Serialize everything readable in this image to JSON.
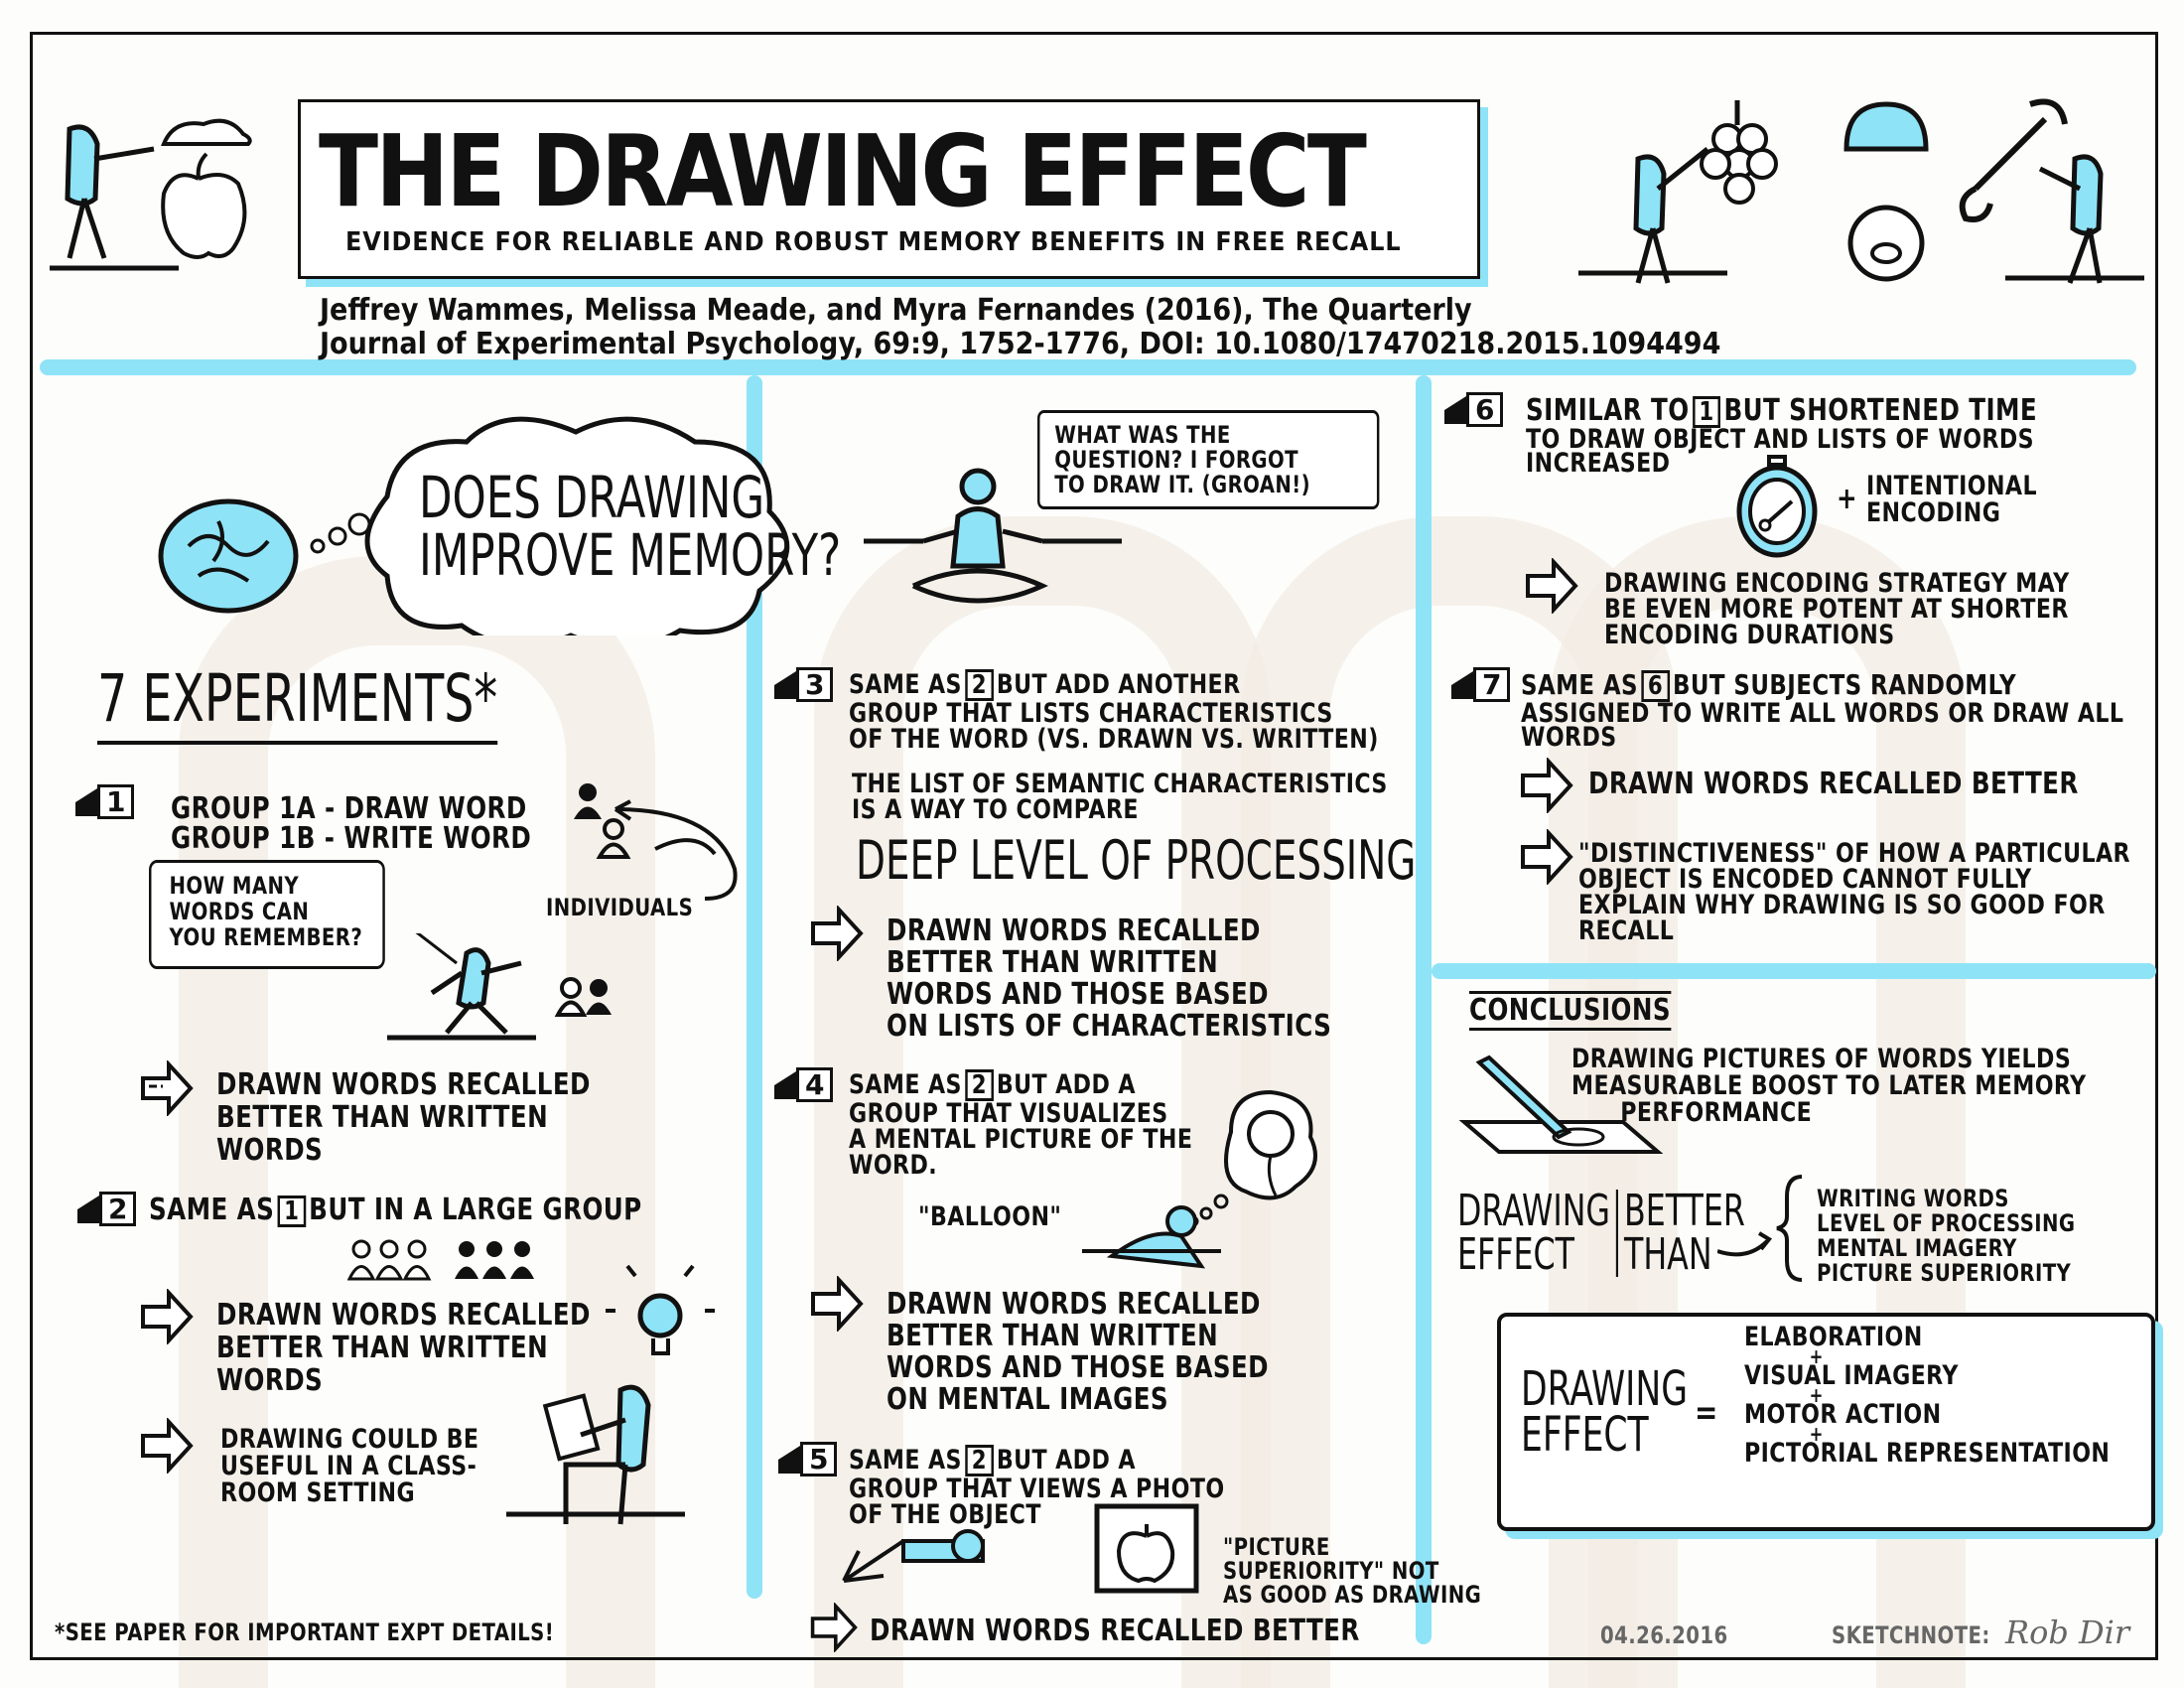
{
  "title": "THE DRAWING EFFECT",
  "subtitle": "EVIDENCE FOR RELIABLE AND ROBUST MEMORY BENEFITS IN FREE RECALL",
  "citation": {
    "line1": "Jeffrey Wammes, Melissa Meade, and Myra Fernandes (2016), The Quarterly",
    "line2": "Journal of Experimental Psychology, 69:9, 1752-1776, DOI: 10.1080/17470218.2015.1094494"
  },
  "colors": {
    "accent": "#8fe3f7",
    "ink": "#111111",
    "watermark": "#f3ece4"
  },
  "left": {
    "question": [
      "DOES DRAWING",
      "IMPROVE MEMORY?"
    ],
    "experiments_heading": "7 EXPERIMENTS*",
    "exp1": {
      "number": "1",
      "lines": [
        "GROUP 1A - DRAW WORD",
        "GROUP 1B - WRITE WORD"
      ],
      "speech": [
        "HOW MANY",
        "WORDS CAN",
        "YOU REMEMBER?"
      ],
      "individuals": "INDIVIDUALS",
      "result": [
        "DRAWN WORDS RECALLED",
        "BETTER THAN WRITTEN",
        "WORDS"
      ]
    },
    "exp2": {
      "number": "2",
      "prefix": "SAME AS",
      "ref": "1",
      "suffix": "BUT IN A LARGE GROUP",
      "result": [
        "DRAWN WORDS RECALLED",
        "BETTER THAN WRITTEN",
        "WORDS"
      ],
      "note": [
        "DRAWING COULD BE",
        "USEFUL IN A CLASS-",
        "ROOM SETTING"
      ]
    },
    "footnote": "*SEE PAPER FOR IMPORTANT EXPT DETAILS!"
  },
  "middle": {
    "speech": [
      "WHAT WAS THE",
      "QUESTION? I FORGOT",
      "TO DRAW IT. (GROAN!)"
    ],
    "exp3": {
      "number": "3",
      "prefix": "SAME AS",
      "ref": "2",
      "suffix": "BUT ADD ANOTHER",
      "lines": [
        "GROUP THAT LISTS CHARACTERISTICS",
        "OF THE WORD (VS. DRAWN VS. WRITTEN)"
      ],
      "compare": [
        "THE LIST OF SEMANTIC CHARACTERISTICS",
        "IS A WAY TO COMPARE"
      ],
      "deep": "DEEP LEVEL OF PROCESSING",
      "result": [
        "DRAWN WORDS RECALLED",
        "BETTER THAN WRITTEN",
        "WORDS AND THOSE BASED",
        "ON LISTS OF CHARACTERISTICS"
      ]
    },
    "exp4": {
      "number": "4",
      "prefix": "SAME AS",
      "ref": "2",
      "suffix": "BUT ADD A",
      "lines": [
        "GROUP THAT VISUALIZES",
        "A MENTAL PICTURE OF THE",
        "WORD."
      ],
      "balloon": "\"BALLOON\"",
      "result": [
        "DRAWN WORDS RECALLED",
        "BETTER THAN WRITTEN",
        "WORDS AND THOSE BASED",
        "ON MENTAL IMAGES"
      ]
    },
    "exp5": {
      "number": "5",
      "prefix": "SAME AS",
      "ref": "2",
      "suffix": "BUT ADD A",
      "lines": [
        "GROUP THAT VIEWS A PHOTO",
        "OF THE OBJECT"
      ],
      "superiority": [
        "\"PICTURE",
        "SUPERIORITY\" NOT",
        "AS GOOD AS DRAWING"
      ],
      "result": "DRAWN WORDS RECALLED BETTER"
    }
  },
  "right": {
    "exp6": {
      "number": "6",
      "prefix": "SIMILAR TO",
      "ref": "1",
      "suffix": "BUT SHORTENED TIME",
      "lines": [
        "TO DRAW OBJECT AND LISTS OF WORDS",
        "INCREASED"
      ],
      "plus": "+",
      "intentional": [
        "INTENTIONAL",
        "ENCODING"
      ],
      "result": [
        "DRAWING ENCODING STRATEGY MAY",
        "BE EVEN MORE POTENT AT SHORTER",
        "ENCODING DURATIONS"
      ]
    },
    "exp7": {
      "number": "7",
      "prefix": "SAME AS",
      "ref": "6",
      "suffix": "BUT SUBJECTS RANDOMLY",
      "lines": [
        "ASSIGNED TO WRITE ALL WORDS OR DRAW ALL",
        "WORDS"
      ],
      "result1": "DRAWN WORDS RECALLED BETTER",
      "result2": [
        "\"DISTINCTIVENESS\" OF HOW A PARTICULAR",
        "OBJECT IS ENCODED CANNOT FULLY",
        "EXPLAIN WHY DRAWING IS SO GOOD FOR",
        "RECALL"
      ]
    },
    "conclusions": {
      "heading": "CONCLUSIONS",
      "summary": [
        "DRAWING PICTURES OF WORDS YIELDS",
        "MEASURABLE BOOST TO LATER MEMORY",
        "PERFORMANCE"
      ],
      "effect_label": [
        "DRAWING",
        "EFFECT"
      ],
      "better_than": [
        "BETTER",
        "THAN"
      ],
      "alternatives": [
        "WRITING WORDS",
        "LEVEL OF PROCESSING",
        "MENTAL IMAGERY",
        "PICTURE SUPERIORITY"
      ],
      "equation_left": [
        "DRAWING",
        "EFFECT"
      ],
      "equals": "=",
      "plus": "+",
      "components": [
        "ELABORATION",
        "VISUAL IMAGERY",
        "MOTOR ACTION",
        "PICTORIAL REPRESENTATION"
      ]
    },
    "date": "04.26.2016",
    "sketchnote_label": "SKETCHNOTE:",
    "signature": "Rob Dir"
  }
}
